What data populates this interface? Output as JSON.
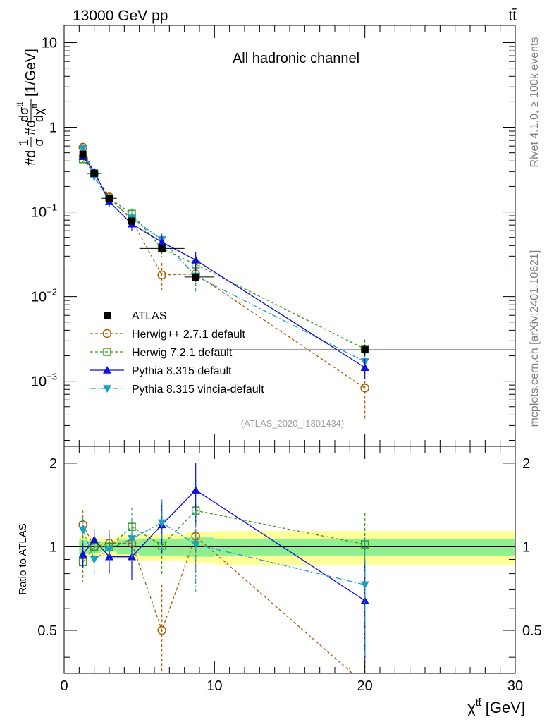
{
  "header": {
    "left": "13000 GeV pp",
    "right": "tt̄"
  },
  "side_labels": {
    "rivet": "Rivet 4.1.0, ≥ 100k events",
    "mcplots": "mcplots.cern.ch [arXiv:2401.10621]"
  },
  "colors": {
    "ATLAS": "#000000",
    "Herwig++ 2.7.1 default": "#b05a00",
    "Herwig 7.2.1 default": "#3c9a1c",
    "Pythia 8.315 default": "#1010d8",
    "Pythia 8.315 vincia-default": "#1aa0c0",
    "band_inner": "#90ee90",
    "band_outer": "#ffff99"
  },
  "chart_data": [
    {
      "type": "line",
      "title": "All hadronic channel",
      "analysis_tag": "(ATLAS_2020_I1801434)",
      "ylabel": "#d 1/σ #d dσ^{tt̄} / dχ^{tt̄} [1/GeV]",
      "ylabel_parts": {
        "pre": "#d",
        "frac1_num": "1",
        "frac1_den": "σ",
        "mid": "#d",
        "frac2_num": "dσ",
        "frac2_num_sup": "tt̄",
        "frac2_den": "dχ",
        "frac2_den_sup": "tt̄",
        "unit": "[1/GeV]"
      },
      "yscale": "log",
      "ylim": [
        0.00017,
        16
      ],
      "xlim": [
        0,
        30
      ],
      "y_ticks": [
        {
          "value": 10,
          "base": "10",
          "exp": ""
        },
        {
          "value": 1,
          "base": "1",
          "exp": ""
        },
        {
          "value": 0.1,
          "base": "10",
          "exp": "−1"
        },
        {
          "value": 0.01,
          "base": "10",
          "exp": "−2"
        },
        {
          "value": 0.001,
          "base": "10",
          "exp": "−3"
        }
      ],
      "x": [
        1.25,
        2.0,
        3.0,
        4.5,
        6.5,
        8.75,
        20.0
      ],
      "x_bin_edges": [
        1.0,
        1.5,
        2.5,
        3.5,
        5.0,
        8.0,
        10.0,
        30.0
      ],
      "legend_position": "lower-left",
      "series": [
        {
          "name": "ATLAS",
          "style": "data",
          "values": [
            0.48,
            0.285,
            0.145,
            0.078,
            0.037,
            0.017,
            0.00235
          ],
          "errors": [
            0.05,
            0.02,
            0.009,
            0.006,
            0.004,
            0.002,
            0.00035
          ]
        },
        {
          "name": "Herwig++ 2.7.1 default",
          "style": "dashed",
          "marker": "open-circle",
          "values": [
            0.58,
            0.285,
            0.15,
            0.08,
            0.018,
            0.0185,
            0.00083
          ],
          "errors": [
            0.05,
            0.025,
            0.018,
            0.015,
            0.007,
            0.006,
            0.00048
          ]
        },
        {
          "name": "Herwig 7.2.1 default",
          "style": "dashed",
          "marker": "open-square",
          "values": [
            0.42,
            0.285,
            0.145,
            0.095,
            0.037,
            0.024,
            0.0024
          ],
          "errors": [
            0.04,
            0.025,
            0.018,
            0.015,
            0.008,
            0.007,
            0.0007
          ]
        },
        {
          "name": "Pythia 8.315 default",
          "style": "solid",
          "marker": "triangle-up",
          "values": [
            0.45,
            0.3,
            0.132,
            0.072,
            0.044,
            0.027,
            0.00145
          ],
          "errors": [
            0.04,
            0.025,
            0.018,
            0.013,
            0.009,
            0.007,
            0.0004
          ]
        },
        {
          "name": "Pythia 8.315 vincia-default",
          "style": "dashdot",
          "marker": "triangle-down",
          "values": [
            0.56,
            0.26,
            0.14,
            0.085,
            0.047,
            0.0175,
            0.0017
          ],
          "errors": [
            0.05,
            0.025,
            0.018,
            0.015,
            0.009,
            0.006,
            0.0005
          ]
        }
      ]
    },
    {
      "type": "line",
      "ylabel": "Ratio to ATLAS",
      "xlabel": "χ^{tt̄} [GeV]",
      "xlabel_parts": {
        "base": "χ",
        "sup": "tt̄",
        "unit": " [GeV]"
      },
      "xlim": [
        0,
        30
      ],
      "ylim": [
        0.35,
        2.3
      ],
      "x_ticks": [
        0,
        10,
        20,
        30
      ],
      "y_ticks": [
        0.5,
        1,
        2
      ],
      "reference_line": 1,
      "x": [
        1.25,
        2.0,
        3.0,
        4.5,
        6.5,
        8.75,
        20.0
      ],
      "band": {
        "x_edges": [
          1.0,
          1.5,
          2.5,
          3.5,
          5.0,
          8.0,
          10.0,
          30.0
        ],
        "inner_half": [
          0.06,
          0.05,
          0.04,
          0.06,
          0.07,
          0.08,
          0.07
        ],
        "outer_half": [
          0.1,
          0.08,
          0.07,
          0.1,
          0.11,
          0.13,
          0.14
        ]
      },
      "series": [
        {
          "name": "Herwig++ 2.7.1 default",
          "values": [
            1.2,
            1.0,
            1.03,
            1.03,
            0.5,
            1.09,
            0.32
          ],
          "errors": [
            0.15,
            0.1,
            0.12,
            0.2,
            0.23,
            0.32,
            0.2
          ]
        },
        {
          "name": "Herwig 7.2.1 default",
          "values": [
            0.88,
            1.0,
            1.0,
            1.18,
            1.01,
            1.35,
            1.02
          ],
          "errors": [
            0.13,
            0.1,
            0.12,
            0.2,
            0.22,
            0.4,
            0.3
          ]
        },
        {
          "name": "Pythia 8.315 default",
          "values": [
            0.94,
            1.06,
            0.92,
            0.92,
            1.2,
            1.6,
            0.64
          ],
          "errors": [
            0.1,
            0.1,
            0.12,
            0.16,
            0.25,
            0.4,
            0.25
          ]
        },
        {
          "name": "Pythia 8.315 vincia-default",
          "values": [
            1.15,
            0.9,
            0.98,
            1.07,
            1.22,
            1.02,
            0.73
          ],
          "errors": [
            0.12,
            0.1,
            0.12,
            0.2,
            0.26,
            0.33,
            0.35
          ]
        }
      ]
    }
  ]
}
